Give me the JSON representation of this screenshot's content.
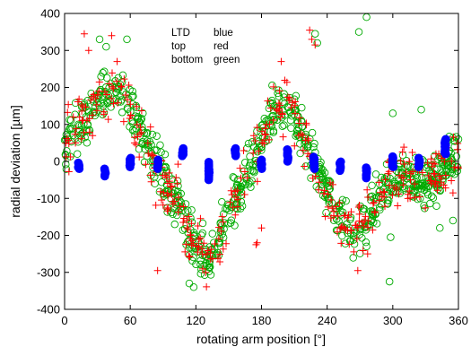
{
  "chart_data": {
    "type": "scatter",
    "xlabel": "rotating arm position [°]",
    "ylabel": "radial deviation [µm]",
    "xlim": [
      0,
      360
    ],
    "ylim": [
      -400,
      400
    ],
    "xticks": [
      0,
      60,
      120,
      180,
      240,
      300,
      360
    ],
    "yticks": [
      -400,
      -300,
      -200,
      -100,
      0,
      100,
      200,
      300,
      400
    ],
    "grid": false,
    "legend_text": [
      {
        "left": "LTD",
        "right": "blue"
      },
      {
        "left": "top",
        "right": "red"
      },
      {
        "left": "bottom",
        "right": "green"
      }
    ],
    "series": [
      {
        "color": "#0000ff",
        "marker": "filled-circle",
        "points": [
          [
            13,
            -10
          ],
          [
            13,
            -20
          ],
          [
            37,
            -30
          ],
          [
            60,
            0
          ],
          [
            60,
            -10
          ],
          [
            85,
            -5
          ],
          [
            85,
            -15
          ],
          [
            108,
            25
          ],
          [
            132,
            -20
          ],
          [
            132,
            -45
          ],
          [
            156,
            25
          ],
          [
            180,
            -5
          ],
          [
            180,
            -15
          ],
          [
            204,
            20
          ],
          [
            204,
            10
          ],
          [
            228,
            5
          ],
          [
            228,
            -15
          ],
          [
            252,
            -5
          ],
          [
            252,
            -20
          ],
          [
            276,
            -20
          ],
          [
            276,
            -40
          ],
          [
            300,
            5
          ],
          [
            300,
            -10
          ],
          [
            324,
            0
          ],
          [
            324,
            -10
          ],
          [
            348,
            45
          ],
          [
            348,
            30
          ]
        ],
        "clusters": [
          {
            "x": 13,
            "ymin": -20,
            "ymax": -2
          },
          {
            "x": 37,
            "ymin": -40,
            "ymax": -20
          },
          {
            "x": 60,
            "ymin": -15,
            "ymax": 10
          },
          {
            "x": 85,
            "ymin": -20,
            "ymax": 5
          },
          {
            "x": 108,
            "ymin": 15,
            "ymax": 35
          },
          {
            "x": 132,
            "ymin": -50,
            "ymax": 0
          },
          {
            "x": 156,
            "ymin": 15,
            "ymax": 35
          },
          {
            "x": 180,
            "ymin": -20,
            "ymax": 5
          },
          {
            "x": 204,
            "ymin": 0,
            "ymax": 35
          },
          {
            "x": 228,
            "ymin": -20,
            "ymax": 15
          },
          {
            "x": 252,
            "ymin": -25,
            "ymax": 0
          },
          {
            "x": 276,
            "ymin": -45,
            "ymax": -15
          },
          {
            "x": 300,
            "ymin": -15,
            "ymax": 15
          },
          {
            "x": 324,
            "ymin": -15,
            "ymax": 10
          },
          {
            "x": 348,
            "ymin": 20,
            "ymax": 60
          }
        ]
      },
      {
        "color": "#ff0000",
        "marker": "plus",
        "trend": [
          [
            0,
            50
          ],
          [
            15,
            110
          ],
          [
            30,
            170
          ],
          [
            45,
            200
          ],
          [
            60,
            130
          ],
          [
            75,
            30
          ],
          [
            90,
            -50
          ],
          [
            105,
            -130
          ],
          [
            120,
            -230
          ],
          [
            132,
            -270
          ],
          [
            145,
            -180
          ],
          [
            160,
            -80
          ],
          [
            175,
            30
          ],
          [
            190,
            140
          ],
          [
            205,
            150
          ],
          [
            220,
            60
          ],
          [
            235,
            -60
          ],
          [
            250,
            -150
          ],
          [
            265,
            -190
          ],
          [
            280,
            -130
          ],
          [
            295,
            -60
          ],
          [
            310,
            -20
          ],
          [
            325,
            -50
          ],
          [
            340,
            -40
          ],
          [
            350,
            -10
          ],
          [
            360,
            20
          ]
        ],
        "outliers": [
          [
            18,
            345
          ],
          [
            43,
            340
          ],
          [
            22,
            300
          ],
          [
            8,
            120
          ],
          [
            48,
            270
          ],
          [
            103,
            -60
          ],
          [
            85,
            -295
          ],
          [
            153,
            -90
          ],
          [
            176,
            -220
          ],
          [
            175,
            -225
          ],
          [
            180,
            -180
          ],
          [
            224,
            355
          ],
          [
            226,
            330
          ],
          [
            198,
            270
          ],
          [
            229,
            315
          ],
          [
            257,
            -185
          ],
          [
            268,
            -295
          ],
          [
            277,
            -250
          ],
          [
            355,
            -85
          ],
          [
            342,
            20
          ]
        ]
      },
      {
        "color": "#00aa00",
        "marker": "open-circle",
        "trend": [
          [
            0,
            40
          ],
          [
            15,
            100
          ],
          [
            30,
            160
          ],
          [
            45,
            200
          ],
          [
            60,
            140
          ],
          [
            75,
            40
          ],
          [
            90,
            -40
          ],
          [
            105,
            -130
          ],
          [
            120,
            -230
          ],
          [
            132,
            -270
          ],
          [
            145,
            -180
          ],
          [
            160,
            -80
          ],
          [
            175,
            20
          ],
          [
            190,
            130
          ],
          [
            205,
            150
          ],
          [
            220,
            60
          ],
          [
            235,
            -50
          ],
          [
            250,
            -150
          ],
          [
            265,
            -190
          ],
          [
            280,
            -130
          ],
          [
            295,
            -60
          ],
          [
            310,
            -30
          ],
          [
            325,
            -60
          ],
          [
            340,
            -40
          ],
          [
            350,
            -10
          ],
          [
            360,
            20
          ]
        ],
        "outliers": [
          [
            32,
            330
          ],
          [
            38,
            310
          ],
          [
            57,
            330
          ],
          [
            114,
            -330
          ],
          [
            118,
            -340
          ],
          [
            229,
            345
          ],
          [
            231,
            320
          ],
          [
            276,
            390
          ],
          [
            269,
            350
          ],
          [
            276,
            -230
          ],
          [
            297,
            -325
          ],
          [
            298,
            -205
          ],
          [
            300,
            130
          ],
          [
            326,
            140
          ],
          [
            321,
            10
          ],
          [
            325,
            -100
          ],
          [
            343,
            -180
          ],
          [
            360,
            60
          ],
          [
            355,
            -160
          ]
        ]
      }
    ]
  }
}
